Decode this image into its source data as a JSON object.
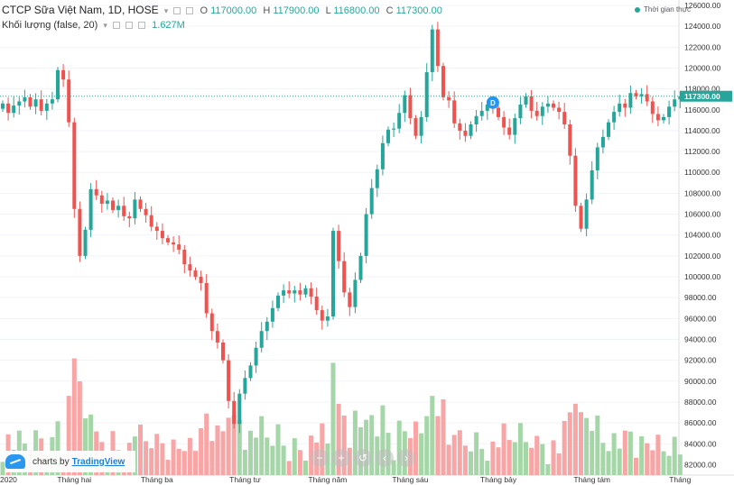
{
  "legend": {
    "title": "CTCP Sữa Việt Nam, 1D, HOSE",
    "o_label": "O",
    "o_value": "117000.00",
    "h_label": "H",
    "h_value": "117900.00",
    "l_label": "L",
    "l_value": "116800.00",
    "c_label": "C",
    "c_value": "117300.00",
    "volume_label": "Khối lượng (false, 20)",
    "volume_value": "1.627M"
  },
  "realtime_label": "Thời gian thực",
  "branding": {
    "prefix": "charts by",
    "name": "TradingView"
  },
  "colors": {
    "up": "#26a69a",
    "down": "#ef5350",
    "vol_up": "#a5d6a7",
    "vol_down": "#f8a5a5",
    "last_price": "#26a69a",
    "grid": "#f0f3fa"
  },
  "chart_data": {
    "type": "candlestick",
    "title": "CTCP Sữa Việt Nam, 1D, HOSE",
    "ylim": [
      81000,
      126000
    ],
    "y_ticks": [
      "126000.00",
      "124000.00",
      "122000.00",
      "120000.00",
      "118000.00",
      "116000.00",
      "114000.00",
      "112000.00",
      "110000.00",
      "108000.00",
      "106000.00",
      "104000.00",
      "102000.00",
      "100000.00",
      "98000.00",
      "96000.00",
      "94000.00",
      "92000.00",
      "90000.00",
      "88000.00",
      "86000.00",
      "84000.00",
      "82000.00"
    ],
    "last_price": 117300,
    "last_price_label": "117300.00",
    "x_labels": [
      "2020",
      "Tháng hai",
      "Tháng ba",
      "Tháng tư",
      "Tháng năm",
      "Tháng sáu",
      "Tháng bảy",
      "Tháng tám",
      "Tháng"
    ],
    "x_label_index": [
      0,
      13,
      28,
      44,
      59,
      74,
      90,
      107,
      123
    ],
    "marker": {
      "label": "D",
      "index": 89,
      "price": 116000
    },
    "closes": [
      116600,
      115700,
      116400,
      116800,
      117200,
      116300,
      117000,
      115900,
      116600,
      117000,
      119800,
      118900,
      114800,
      106500,
      102000,
      104500,
      108400,
      107800,
      107000,
      107300,
      106400,
      106800,
      105800,
      105600,
      107400,
      106500,
      105900,
      104800,
      104400,
      103700,
      103300,
      103100,
      102600,
      101200,
      100600,
      100000,
      99400,
      96500,
      94800,
      93700,
      92000,
      88100,
      85900,
      88800,
      90300,
      91500,
      93200,
      94800,
      95700,
      97000,
      98200,
      98700,
      98400,
      98700,
      98300,
      98900,
      98100,
      96800,
      95800,
      96200,
      104400,
      101500,
      98500,
      97100,
      99700,
      102000,
      106000,
      108500,
      110300,
      112800,
      114100,
      114200,
      115700,
      117400,
      115200,
      113500,
      115300,
      119600,
      123700,
      120200,
      117200,
      116900,
      114700,
      114000,
      113500,
      114600,
      115400,
      115900,
      116500,
      116200,
      115300,
      114300,
      113600,
      115200,
      116500,
      117300,
      115900,
      115400,
      116300,
      116600,
      116200,
      115800,
      114600,
      111600,
      106800,
      104600,
      107400,
      110200,
      112400,
      113400,
      114800,
      115800,
      116600,
      116200,
      117600,
      117300,
      117500,
      116800,
      115600,
      115000,
      115300,
      116300,
      117000,
      117300
    ],
    "volume_ylim": [
      80000,
      126000
    ],
    "volume_note": "volume bars scaled to price axis"
  }
}
